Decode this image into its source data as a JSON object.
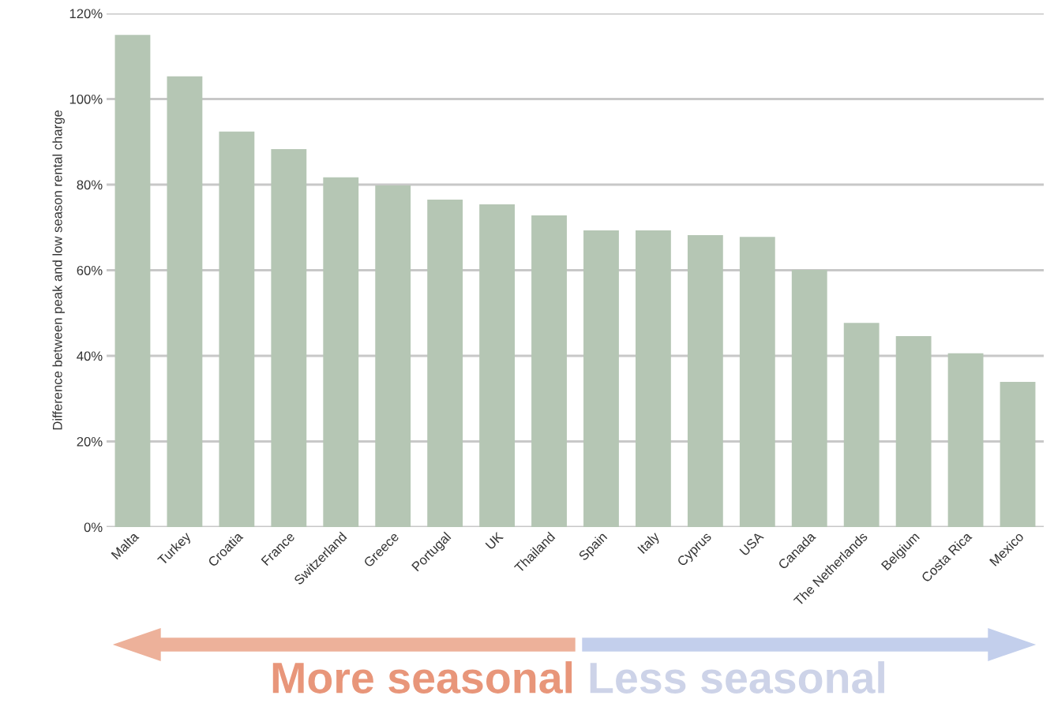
{
  "chart_data": {
    "type": "bar",
    "ylabel": "Difference between peak and low season rental charge",
    "categories": [
      "Malta",
      "Turkey",
      "Croatia",
      "France",
      "Switzerland",
      "Greece",
      "Portugal",
      "UK",
      "Thailand",
      "Spain",
      "Italy",
      "Cyprus",
      "USA",
      "Canada",
      "The Netherlands",
      "Belgium",
      "Costa Rica",
      "Mexico"
    ],
    "values": [
      115.0,
      105.3,
      92.4,
      88.3,
      81.7,
      79.8,
      76.5,
      75.4,
      72.8,
      69.3,
      69.3,
      68.2,
      67.8,
      60.1,
      47.7,
      44.6,
      40.6,
      33.9
    ],
    "color": "#b5c6b4",
    "ylim": [
      0,
      120
    ],
    "yticks": [
      {
        "value": 0,
        "label": "0%"
      },
      {
        "value": 20,
        "label": "20%"
      },
      {
        "value": 40,
        "label": "40%"
      },
      {
        "value": 60,
        "label": "60%"
      },
      {
        "value": 80,
        "label": "80%"
      },
      {
        "value": 100,
        "label": "100%"
      },
      {
        "value": 120,
        "label": "120%"
      }
    ],
    "grid": "y",
    "annotations": [
      "More seasonal",
      "Less seasonal"
    ]
  }
}
